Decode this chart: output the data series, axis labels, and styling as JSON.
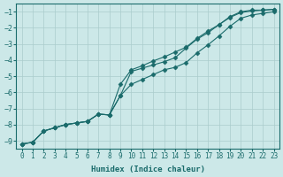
{
  "xlabel": "Humidex (Indice chaleur)",
  "ylabel": "",
  "bg_color": "#cce8e8",
  "grid_color": "#aacccc",
  "line_color": "#1a6b6b",
  "x_min": -0.5,
  "x_max": 23.5,
  "y_min": -9.5,
  "y_max": -0.5,
  "yticks": [
    -9,
    -8,
    -7,
    -6,
    -5,
    -4,
    -3,
    -2,
    -1
  ],
  "xticks": [
    0,
    1,
    2,
    3,
    4,
    5,
    6,
    7,
    8,
    9,
    10,
    11,
    12,
    13,
    14,
    15,
    16,
    17,
    18,
    19,
    20,
    21,
    22,
    23
  ],
  "x_lower": [
    0,
    1,
    2,
    3,
    4,
    5,
    6,
    7,
    8,
    9,
    10,
    11,
    12,
    13,
    14,
    15,
    16,
    17,
    18,
    19,
    20,
    21,
    22,
    23
  ],
  "y_lower": [
    -9.2,
    -9.1,
    -8.4,
    -8.2,
    -8.0,
    -7.9,
    -7.8,
    -7.35,
    -7.4,
    -6.2,
    -5.5,
    -5.2,
    -4.9,
    -4.6,
    -4.45,
    -4.15,
    -3.55,
    -3.05,
    -2.5,
    -1.9,
    -1.4,
    -1.2,
    -1.1,
    -1.0
  ],
  "x_upper": [
    0,
    1,
    2,
    3,
    4,
    5,
    6,
    7,
    8,
    9,
    10,
    11,
    12,
    13,
    14,
    15,
    16,
    17,
    18,
    19,
    20,
    21,
    22,
    23
  ],
  "y_upper": [
    -9.2,
    -9.1,
    -8.4,
    -8.2,
    -8.0,
    -7.9,
    -7.8,
    -7.35,
    -7.4,
    -5.5,
    -4.6,
    -4.35,
    -4.05,
    -3.8,
    -3.5,
    -3.2,
    -2.65,
    -2.2,
    -1.8,
    -1.35,
    -1.05,
    -0.95,
    -0.9,
    -0.85
  ],
  "x_mid": [
    0,
    1,
    2,
    3,
    4,
    5,
    6,
    7,
    8,
    9,
    10,
    11,
    12,
    13,
    14,
    15,
    16,
    17,
    18,
    19,
    20,
    21,
    22,
    23
  ],
  "y_mid": [
    -9.2,
    -9.1,
    -8.4,
    -8.2,
    -8.0,
    -7.9,
    -7.8,
    -7.35,
    -7.4,
    -6.2,
    -4.7,
    -4.5,
    -4.3,
    -4.1,
    -3.85,
    -3.25,
    -2.7,
    -2.3,
    -1.8,
    -1.3,
    -1.0,
    -0.9,
    -0.9,
    -0.85
  ]
}
